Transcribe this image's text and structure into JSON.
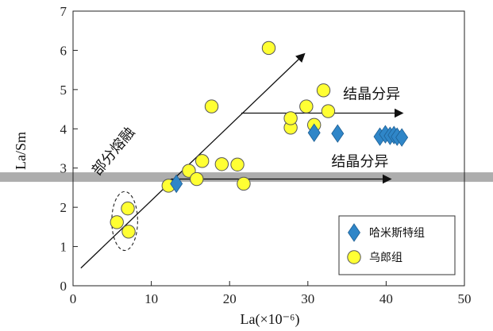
{
  "chart_data": {
    "type": "scatter",
    "xlabel": "La(×10⁻⁶)",
    "ylabel": "La/Sm",
    "xlim": [
      0,
      50
    ],
    "ylim": [
      0,
      7
    ],
    "x_ticks": [
      "0",
      "10",
      "20",
      "30",
      "40",
      "50"
    ],
    "y_ticks": [
      "0",
      "1",
      "2",
      "3",
      "4",
      "5",
      "6",
      "7"
    ],
    "grid": false,
    "legend_position": "bottom-right",
    "series": [
      {
        "name": "哈米斯特组",
        "marker": "diamond",
        "color": "#2f86c8",
        "points": [
          [
            13.2,
            2.6
          ],
          [
            30.8,
            3.9
          ],
          [
            33.8,
            3.88
          ],
          [
            39.2,
            3.8
          ],
          [
            39.9,
            3.86
          ],
          [
            40.5,
            3.82
          ],
          [
            41.0,
            3.84
          ],
          [
            41.4,
            3.8
          ],
          [
            42.0,
            3.78
          ]
        ]
      },
      {
        "name": "乌郎组",
        "marker": "circle",
        "color": "#ffff33",
        "points": [
          [
            5.6,
            1.62
          ],
          [
            7.0,
            1.97
          ],
          [
            7.1,
            1.38
          ],
          [
            12.2,
            2.55
          ],
          [
            14.8,
            2.93
          ],
          [
            15.8,
            2.72
          ],
          [
            16.5,
            3.18
          ],
          [
            17.7,
            4.57
          ],
          [
            19.0,
            3.1
          ],
          [
            21.0,
            3.09
          ],
          [
            21.8,
            2.6
          ],
          [
            25.0,
            6.06
          ],
          [
            27.8,
            4.03
          ],
          [
            27.8,
            4.27
          ],
          [
            29.8,
            4.57
          ],
          [
            30.8,
            4.1
          ],
          [
            32.0,
            4.98
          ],
          [
            32.6,
            4.45
          ]
        ]
      }
    ],
    "annotations": [
      {
        "text": "部分熔融",
        "kind": "arrow",
        "from": [
          1,
          0.45
        ],
        "to": [
          29.5,
          5.9
        ]
      },
      {
        "text": "结晶分异",
        "kind": "arrow",
        "from": [
          21.5,
          4.4
        ],
        "to": [
          42.0,
          4.4
        ]
      },
      {
        "text": "结晶分异",
        "kind": "arrow",
        "from": [
          12.5,
          2.72
        ],
        "to": [
          40.5,
          2.72
        ]
      }
    ],
    "ellipse": {
      "cx": 6.6,
      "cy": 1.65,
      "rx": 1.65,
      "ry": 0.75
    },
    "band_y": 2.77
  },
  "colors": {
    "diamond": "#2f86c8",
    "circle": "#ffff33",
    "circle_stroke": "#555555",
    "band": "#a9a9a9"
  }
}
